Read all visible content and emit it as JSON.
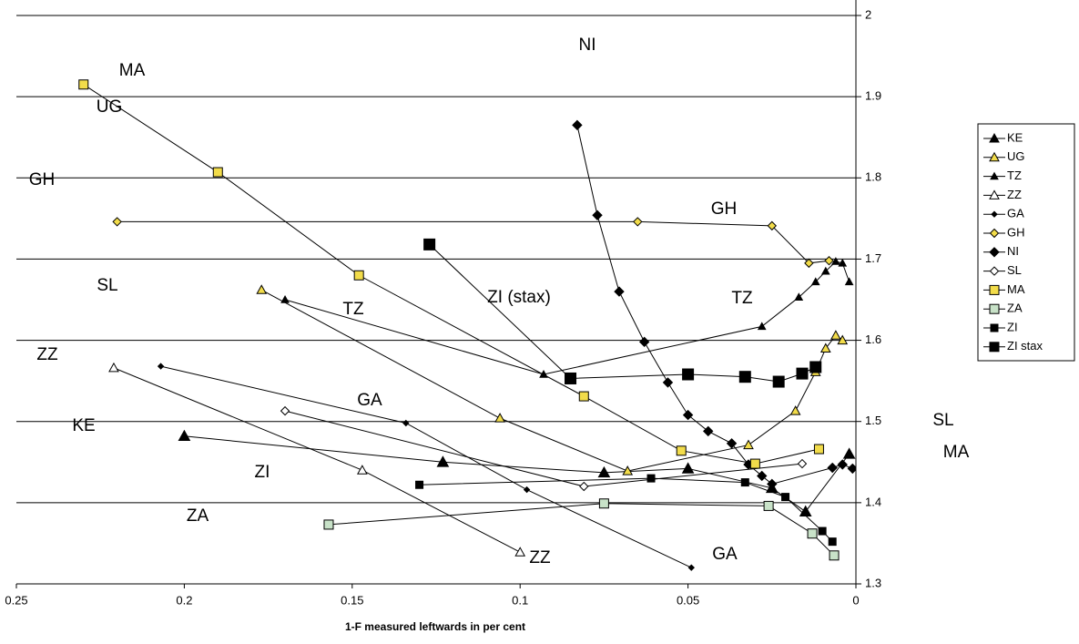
{
  "chart_data": {
    "type": "line",
    "xlabel": "1-F measured leftwards in per cent",
    "xlim": [
      0.25,
      0
    ],
    "xticks": [
      0.25,
      0.2,
      0.15,
      0.1,
      0.05,
      0
    ],
    "ylim": [
      1.3,
      2
    ],
    "yticks": [
      1.3,
      1.4,
      1.5,
      1.6,
      1.7,
      1.8,
      1.9,
      2
    ],
    "y_axis_side": "right",
    "grid": true,
    "legend": "right",
    "annotations": [
      "MA",
      "UG",
      "GH",
      "SL",
      "ZZ",
      "KE",
      "ZI",
      "ZA",
      "NI",
      "GH",
      "ZI (stax)",
      "TZ",
      "TZ",
      "GA",
      "ZZ",
      "GA",
      "SL",
      "MA"
    ],
    "series": [
      {
        "name": "KE",
        "color": "#000000",
        "marker": "triangle",
        "size": 12,
        "x": [
          0.2,
          0.123,
          0.075,
          0.05,
          0.025,
          0.015,
          0.002
        ],
        "values": [
          1.482,
          1.45,
          1.437,
          1.442,
          1.418,
          1.389,
          1.46
        ]
      },
      {
        "name": "UG",
        "color": "#f2dc4a",
        "marker": "triangle",
        "size": 10,
        "x": [
          0.177,
          0.106,
          0.068,
          0.032,
          0.018,
          0.012,
          0.009,
          0.006,
          0.004
        ],
        "values": [
          1.662,
          1.504,
          1.439,
          1.471,
          1.513,
          1.561,
          1.59,
          1.606,
          1.6
        ]
      },
      {
        "name": "TZ",
        "color": "#000000",
        "marker": "triangle",
        "size": 8,
        "x": [
          0.17,
          0.093,
          0.028,
          0.017,
          0.012,
          0.009,
          0.006,
          0.004,
          0.002
        ],
        "values": [
          1.65,
          1.558,
          1.617,
          1.653,
          1.672,
          1.685,
          1.697,
          1.695,
          1.672
        ]
      },
      {
        "name": "ZZ",
        "color": "#ffffff",
        "marker": "triangle",
        "size": 10,
        "x": [
          0.221,
          0.147,
          0.1
        ],
        "values": [
          1.566,
          1.44,
          1.339
        ]
      },
      {
        "name": "GA",
        "color": "#000000",
        "marker": "diamond",
        "size": 6,
        "x": [
          0.207,
          0.134,
          0.098,
          0.049
        ],
        "values": [
          1.568,
          1.498,
          1.416,
          1.32
        ]
      },
      {
        "name": "GH",
        "color": "#f2dc4a",
        "marker": "diamond",
        "size": 9,
        "x": [
          0.22,
          0.065,
          0.025,
          0.014,
          0.008
        ],
        "values": [
          1.746,
          1.746,
          1.741,
          1.695,
          1.698
        ]
      },
      {
        "name": "NI",
        "color": "#000000",
        "marker": "diamond",
        "size": 10,
        "x": [
          0.083,
          0.077,
          0.0705,
          0.063,
          0.056,
          0.05,
          0.044,
          0.037,
          0.032,
          0.028,
          0.025,
          0.007,
          0.004,
          0.001
        ],
        "values": [
          1.865,
          1.754,
          1.66,
          1.598,
          1.548,
          1.508,
          1.488,
          1.473,
          1.447,
          1.433,
          1.423,
          1.443,
          1.447,
          1.442
        ]
      },
      {
        "name": "SL",
        "color": "#ffffff",
        "marker": "diamond",
        "size": 9,
        "x": [
          0.17,
          0.081,
          0.016
        ],
        "values": [
          1.513,
          1.42,
          1.448
        ]
      },
      {
        "name": "MA",
        "color": "#f2dc4a",
        "marker": "square",
        "size": 10,
        "x": [
          0.23,
          0.19,
          0.148,
          0.081,
          0.052,
          0.03,
          0.011
        ],
        "values": [
          1.915,
          1.807,
          1.68,
          1.531,
          1.464,
          1.448,
          1.466
        ]
      },
      {
        "name": "ZA",
        "color": "#c8e2c8",
        "marker": "square",
        "size": 10,
        "x": [
          0.157,
          0.075,
          0.026,
          0.013,
          0.0065
        ],
        "values": [
          1.373,
          1.399,
          1.396,
          1.362,
          1.335
        ]
      },
      {
        "name": "ZI",
        "color": "#000000",
        "marker": "square",
        "size": 8,
        "x": [
          0.13,
          0.061,
          0.033,
          0.021,
          0.01,
          0.007
        ],
        "values": [
          1.422,
          1.43,
          1.425,
          1.407,
          1.365,
          1.352
        ]
      },
      {
        "name": "ZI stax",
        "color": "#000000",
        "marker": "square",
        "size": 12,
        "x": [
          0.127,
          0.085,
          0.05,
          0.033,
          0.023,
          0.016,
          0.012
        ],
        "values": [
          1.718,
          1.553,
          1.558,
          1.555,
          1.549,
          1.559,
          1.567
        ]
      }
    ]
  }
}
